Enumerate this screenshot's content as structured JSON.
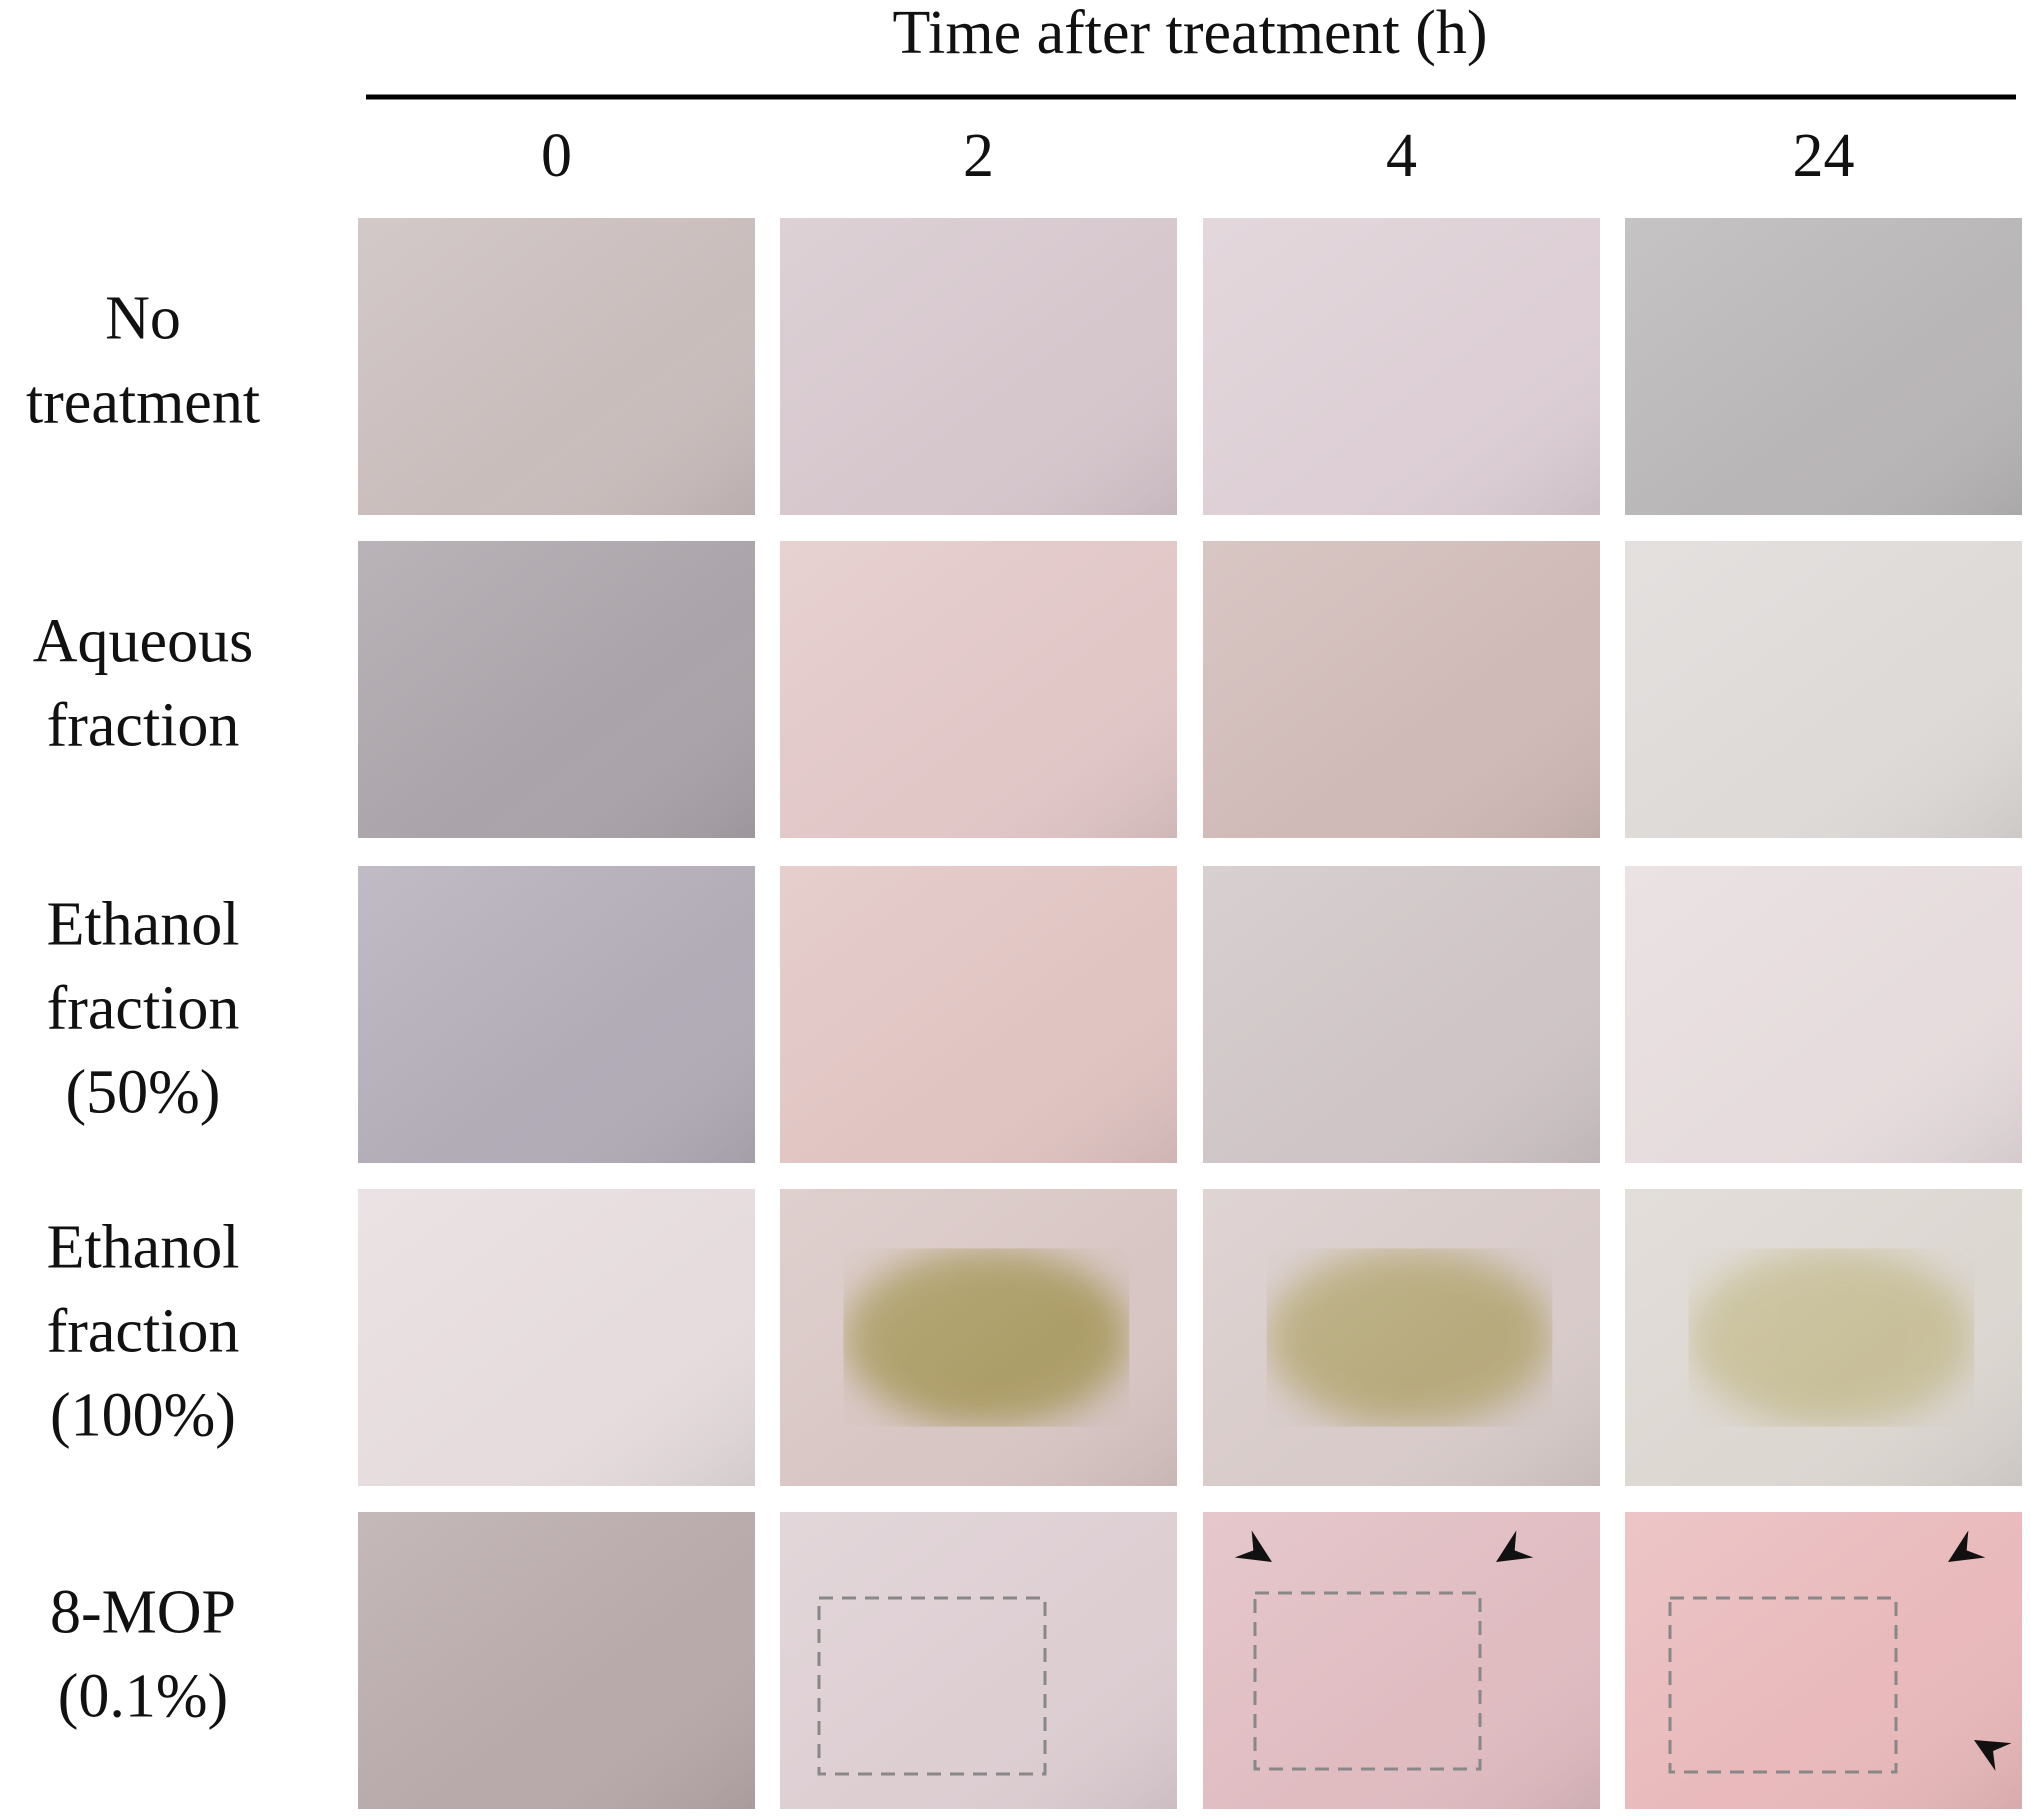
{
  "header": {
    "title": "Time after treatment (h)",
    "columns": [
      "0",
      "2",
      "4",
      "24"
    ]
  },
  "rows": [
    {
      "lines": [
        "No",
        "treatment"
      ]
    },
    {
      "lines": [
        "Aqueous",
        "fraction"
      ]
    },
    {
      "lines": [
        "Ethanol",
        "fraction",
        "(50%)"
      ]
    },
    {
      "lines": [
        "Ethanol",
        "fraction",
        "(100%)"
      ]
    },
    {
      "lines": [
        "8-MOP",
        "(0.1%)"
      ]
    }
  ]
}
